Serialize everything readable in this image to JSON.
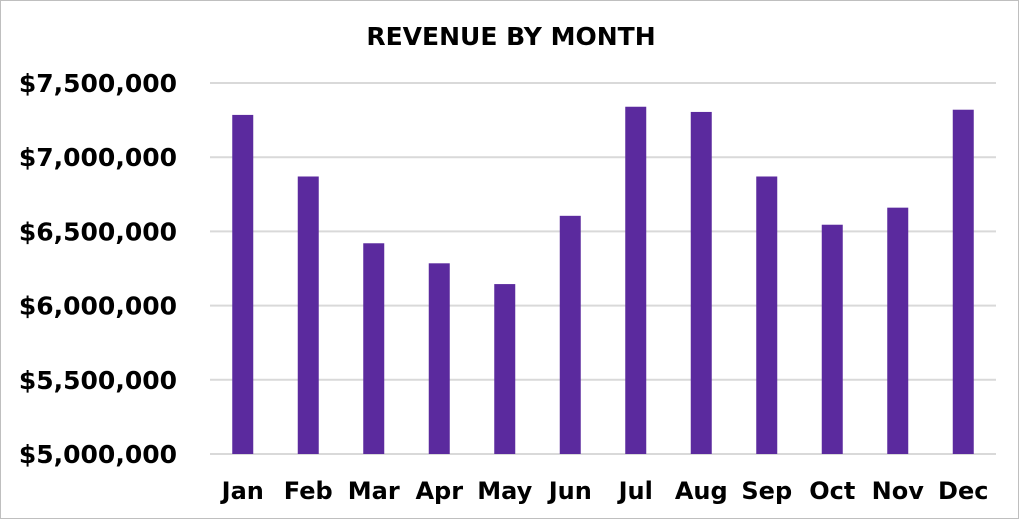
{
  "chart_data": {
    "type": "bar",
    "title": "REVENUE BY MONTH",
    "xlabel": "",
    "ylabel": "",
    "categories": [
      "Jan",
      "Feb",
      "Mar",
      "Apr",
      "May",
      "Jun",
      "Jul",
      "Aug",
      "Sep",
      "Oct",
      "Nov",
      "Dec"
    ],
    "values": [
      7285000,
      6870000,
      6420000,
      6285000,
      6145000,
      6605000,
      7340000,
      7305000,
      6870000,
      6545000,
      6660000,
      7320000
    ],
    "ylim": [
      5000000,
      7500000
    ],
    "yticks": [
      5000000,
      5500000,
      6000000,
      6500000,
      7000000,
      7500000
    ],
    "ytick_labels": [
      "$5,000,000",
      "$5,500,000",
      "$6,000,000",
      "$6,500,000",
      "$7,000,000",
      "$7,500,000"
    ],
    "grid": true,
    "legend": "none",
    "bar_color": "#5B2A9E",
    "grid_color": "#D9D9D9"
  }
}
